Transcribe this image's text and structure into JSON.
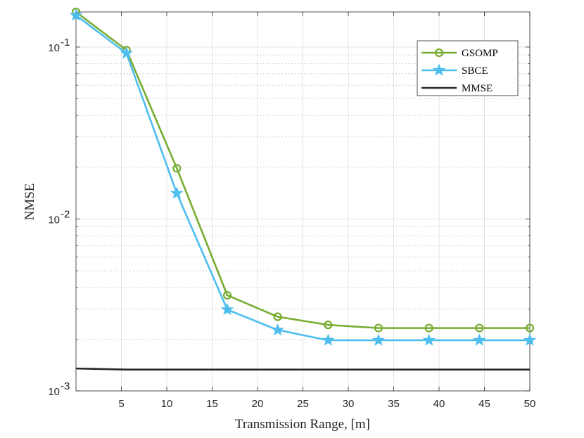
{
  "chart_data": {
    "type": "line",
    "title": "",
    "xlabel": "Transmission Range, [m]",
    "ylabel": "NMSE",
    "xlim": [
      0,
      50
    ],
    "ylim": [
      0.001,
      0.16
    ],
    "yscale": "log",
    "grid": true,
    "legend_position": "top-right",
    "x_ticks": [
      5,
      10,
      15,
      20,
      25,
      30,
      35,
      40,
      45,
      50
    ],
    "y_ticks": [
      {
        "value": 0.1,
        "base": "10",
        "exp": "-1"
      },
      {
        "value": 0.01,
        "base": "10",
        "exp": "-2"
      },
      {
        "value": 0.001,
        "base": "10",
        "exp": "-3"
      }
    ],
    "x": [
      0,
      5.56,
      11.11,
      16.67,
      22.22,
      27.78,
      33.33,
      38.89,
      44.44,
      50
    ],
    "series": [
      {
        "name": "GSOMP",
        "color": "#77AC30",
        "marker": "circle",
        "values": [
          0.16,
          0.096,
          0.0197,
          0.0036,
          0.0027,
          0.00242,
          0.00232,
          0.00232,
          0.00232,
          0.00232
        ]
      },
      {
        "name": "SBCE",
        "color": "#4DBEEE",
        "marker": "star",
        "values": [
          0.153,
          0.092,
          0.0141,
          0.00297,
          0.00226,
          0.00197,
          0.00197,
          0.00197,
          0.00197,
          0.00197
        ]
      },
      {
        "name": "MMSE",
        "color": "#262626",
        "marker": "none",
        "x": [
          0,
          5.56,
          50
        ],
        "values": [
          0.00135,
          0.00133,
          0.00133
        ]
      }
    ]
  }
}
